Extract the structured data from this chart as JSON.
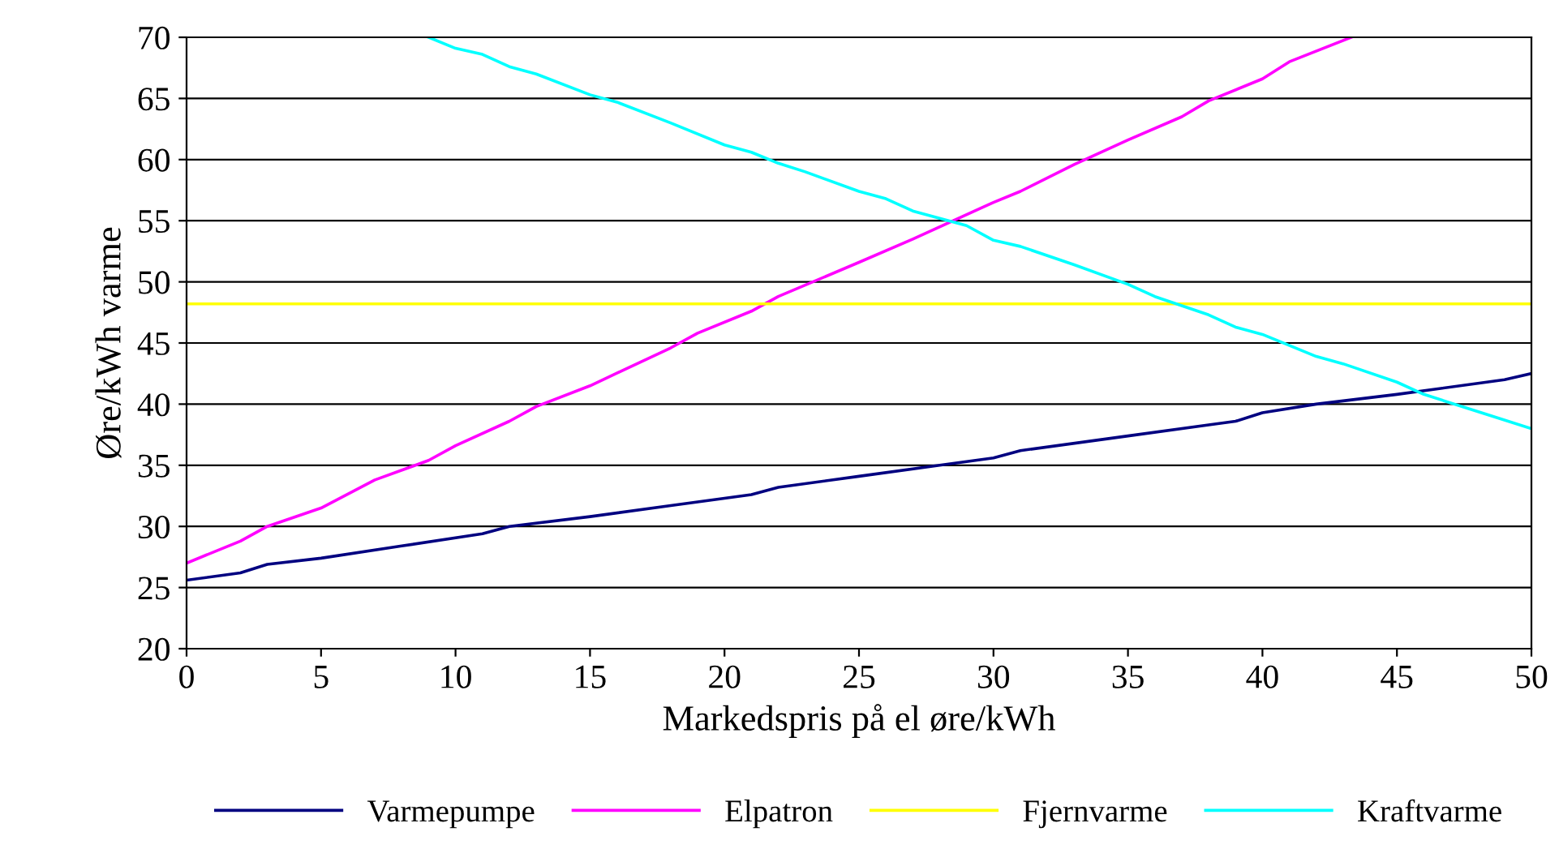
{
  "chart_data": {
    "type": "line",
    "xlabel": "Markedspris på el øre/kWh",
    "ylabel": "Øre/kWh varme",
    "xlim": [
      0,
      50
    ],
    "xticks": [
      0,
      5,
      10,
      15,
      20,
      25,
      30,
      35,
      40,
      45,
      50
    ],
    "ylim": [
      20,
      70
    ],
    "yticks": [
      20,
      25,
      30,
      35,
      40,
      45,
      50,
      55,
      60,
      65,
      70
    ],
    "grid": "y",
    "legend": "bottom",
    "marker": "none",
    "line_style": "solid",
    "series": [
      {
        "name": "Varmepumpe",
        "color": "#000080",
        "x": [
          0,
          2,
          3,
          5,
          8,
          11,
          12,
          15,
          18,
          21,
          22,
          25,
          28,
          30,
          31,
          35,
          38,
          39,
          40,
          42,
          45,
          49,
          50
        ],
        "values": [
          25.6,
          26.2,
          26.9,
          27.4,
          28.4,
          29.4,
          30.0,
          30.8,
          31.7,
          32.6,
          33.2,
          34.1,
          35.0,
          35.6,
          36.2,
          37.4,
          38.3,
          38.6,
          39.3,
          40.0,
          40.8,
          42.0,
          42.5
        ]
      },
      {
        "name": "Elpatron",
        "color": "#ff00ff",
        "x": [
          0,
          2,
          3,
          5,
          7,
          9,
          10,
          12,
          13,
          15,
          18,
          19,
          21,
          22,
          25,
          27,
          30,
          31,
          33,
          35,
          37,
          38,
          40,
          41,
          43.3
        ],
        "values": [
          27.0,
          28.8,
          30.0,
          31.5,
          33.8,
          35.4,
          36.6,
          38.6,
          39.8,
          41.5,
          44.6,
          45.8,
          47.6,
          48.8,
          51.6,
          53.5,
          56.5,
          57.4,
          59.6,
          61.6,
          63.5,
          64.8,
          66.6,
          68.0,
          70.0
        ]
      },
      {
        "name": "Fjernvarme",
        "color": "#ffff00",
        "x": [
          0,
          50
        ],
        "values": [
          48.2,
          48.2
        ]
      },
      {
        "name": "Kraftvarme",
        "color": "#00ffff",
        "x": [
          9,
          10,
          11,
          12,
          13,
          15,
          16,
          18,
          20,
          21,
          22,
          23,
          25,
          26,
          27,
          29,
          30,
          31,
          33,
          35,
          36,
          38,
          39,
          40,
          42,
          43,
          45,
          46,
          48,
          50
        ],
        "values": [
          70.0,
          69.1,
          68.6,
          67.6,
          67.0,
          65.3,
          64.7,
          63.0,
          61.2,
          60.6,
          59.7,
          59.0,
          57.4,
          56.8,
          55.8,
          54.6,
          53.4,
          52.9,
          51.4,
          49.8,
          48.8,
          47.3,
          46.3,
          45.7,
          43.9,
          43.3,
          41.8,
          40.8,
          39.4,
          38.0
        ]
      }
    ]
  }
}
